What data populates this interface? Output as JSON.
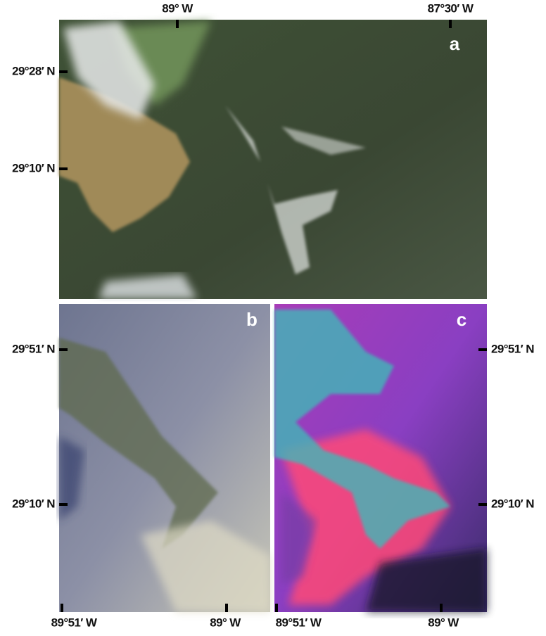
{
  "panels": [
    {
      "label": "a",
      "top_labels": [
        "89° W",
        "87°30′ W"
      ],
      "left_labels": [
        "29°28′ N",
        "29°10′ N"
      ]
    },
    {
      "label": "b",
      "left_labels": [
        "29°51′ N",
        "29°10′ N"
      ],
      "bottom_labels": [
        "89°51′ W",
        "89° W"
      ]
    },
    {
      "label": "c",
      "right_labels": [
        "29°51′ N",
        "29°10′ N"
      ],
      "bottom_labels": [
        "89°51′ W",
        "89° W"
      ]
    }
  ]
}
